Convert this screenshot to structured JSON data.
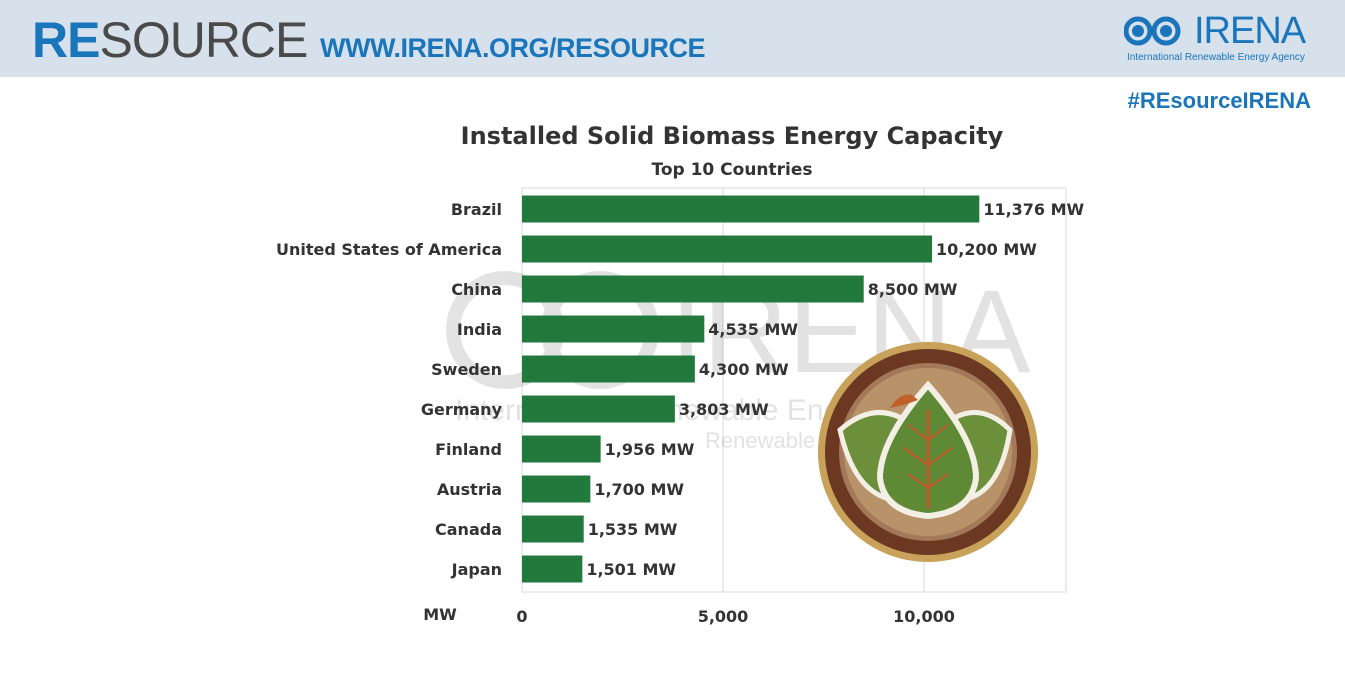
{
  "header": {
    "brand_bold": "RE",
    "brand_rest": "SOURCE",
    "url": "WWW.IRENA.ORG/RESOURCE",
    "logo_wordmark": "IRENA",
    "logo_subtitle": "International Renewable Energy Agency",
    "hashtag": "#REsourceIRENA",
    "accent_color": "#1b75bb",
    "banner_color": "#d6e1ec"
  },
  "watermark": {
    "wordmark": "IRENA",
    "line1": "International Renewable Energy Agency",
    "line2": "Renewable"
  },
  "chart_data": {
    "type": "bar",
    "orientation": "horizontal",
    "title": "Installed Solid Biomass Energy Capacity",
    "subtitle": "Top 10 Countries",
    "xlabel": "MW",
    "categories": [
      "Brazil",
      "United States of America",
      "China",
      "India",
      "Sweden",
      "Germany",
      "Finland",
      "Austria",
      "Canada",
      "Japan"
    ],
    "values": [
      11376,
      10200,
      8500,
      4535,
      4300,
      3803,
      1956,
      1700,
      1535,
      1501
    ],
    "value_labels": [
      "11,376 MW",
      "10,200 MW",
      "8,500 MW",
      "4,535 MW",
      "4,300 MW",
      "3,803 MW",
      "1,956 MW",
      "1,700 MW",
      "1,535 MW",
      "1,501 MW"
    ],
    "xticks": [
      0,
      5000,
      10000
    ],
    "xtick_labels": [
      "0",
      "5,000",
      "10,000"
    ],
    "xlim": [
      0,
      13500
    ],
    "grid": true,
    "legend": "none",
    "bar_color": "#217a3c"
  }
}
